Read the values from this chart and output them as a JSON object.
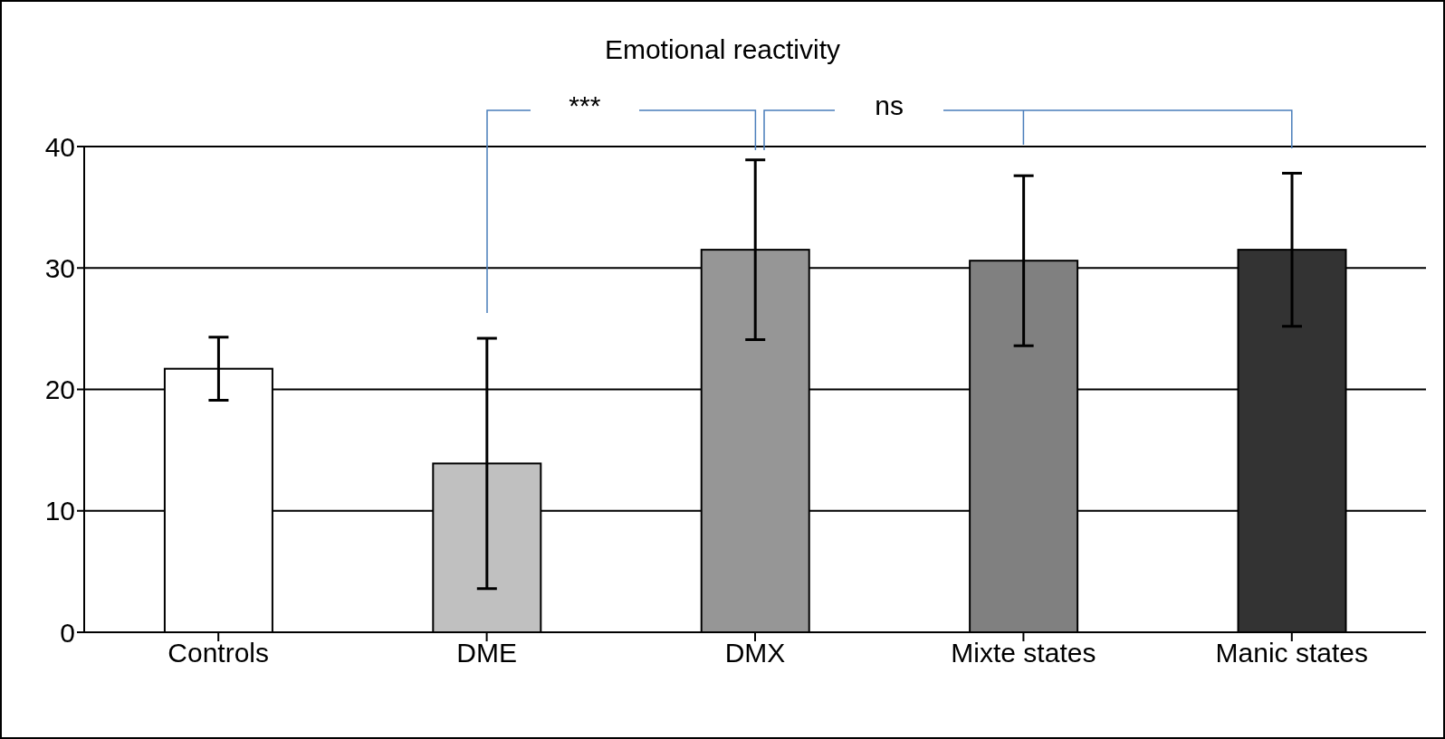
{
  "chart_data": {
    "type": "bar",
    "title": "Emotional reactivity",
    "categories": [
      "Controls",
      "DME",
      "DMX",
      "Mixte states",
      "Manic states"
    ],
    "values": [
      21.7,
      13.9,
      31.5,
      30.6,
      31.5
    ],
    "errors": [
      2.6,
      10.3,
      7.4,
      7.0,
      6.3
    ],
    "colors": [
      "#ffffff",
      "#c0c0c0",
      "#969696",
      "#808080",
      "#333333"
    ],
    "ylim": [
      0,
      40
    ],
    "yticks": [
      0,
      10,
      20,
      30,
      40
    ],
    "grid": "y",
    "annotations": [
      "***",
      "ns"
    ]
  }
}
